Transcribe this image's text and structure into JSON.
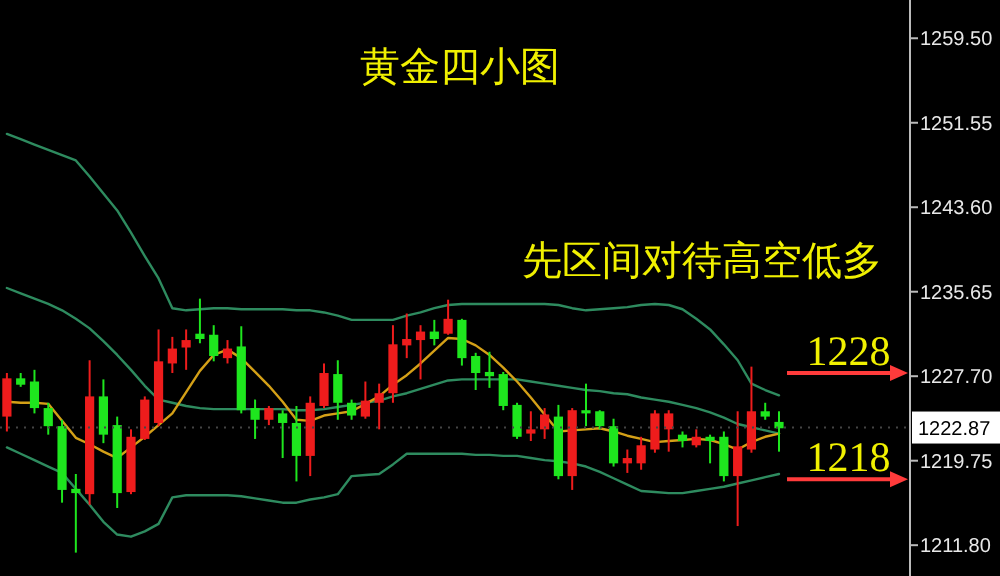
{
  "chart_data": {
    "type": "candlestick",
    "title": "黄金四小图",
    "subtitle": "先区间对待高空低多",
    "categories": [
      null,
      null,
      null,
      null,
      null,
      null,
      null,
      null,
      null,
      null,
      null,
      null,
      null,
      null,
      null,
      null,
      null,
      null,
      null,
      null,
      null,
      null,
      null,
      null,
      null,
      null,
      null,
      null,
      null,
      null,
      null,
      null,
      null,
      null,
      null,
      null,
      null,
      null,
      null,
      null,
      null,
      null,
      null,
      null,
      null,
      null,
      null,
      null,
      null,
      null,
      null,
      null,
      null,
      null,
      null,
      null,
      null,
      null,
      null,
      null,
      null,
      null,
      null,
      null,
      null,
      null
    ],
    "ohlc": [
      [
        1227.5,
        1228.0,
        1222.5,
        1223.9
      ],
      [
        1226.9,
        1228.0,
        1226.7,
        1227.5
      ],
      [
        1224.7,
        1228.3,
        1224.2,
        1227.2
      ],
      [
        1223.0,
        1225.2,
        1222.2,
        1224.7
      ],
      [
        1217.0,
        1223.6,
        1215.8,
        1223.0
      ],
      [
        1216.7,
        1218.5,
        1211.1,
        1217.1
      ],
      [
        1225.8,
        1229.2,
        1215.6,
        1216.6
      ],
      [
        1222.2,
        1227.4,
        1221.4,
        1225.8
      ],
      [
        1216.7,
        1223.9,
        1215.3,
        1223.1
      ],
      [
        1222.0,
        1222.7,
        1216.6,
        1216.8
      ],
      [
        1225.5,
        1225.8,
        1221.7,
        1221.8
      ],
      [
        1229.1,
        1232.1,
        1223.0,
        1223.3
      ],
      [
        1230.3,
        1231.4,
        1228.0,
        1228.9
      ],
      [
        1231.1,
        1232.1,
        1228.3,
        1230.4
      ],
      [
        1231.2,
        1235.0,
        1230.8,
        1231.7
      ],
      [
        1229.6,
        1232.5,
        1229.1,
        1231.6
      ],
      [
        1230.3,
        1231.1,
        1228.9,
        1229.4
      ],
      [
        1224.5,
        1232.4,
        1224.2,
        1230.5
      ],
      [
        1223.6,
        1225.5,
        1221.8,
        1224.7
      ],
      [
        1224.7,
        1224.9,
        1223.1,
        1223.6
      ],
      [
        1223.3,
        1224.5,
        1220.0,
        1224.2
      ],
      [
        1220.2,
        1224.9,
        1217.8,
        1223.3
      ],
      [
        1225.2,
        1225.8,
        1218.3,
        1220.2
      ],
      [
        1228.0,
        1228.9,
        1224.7,
        1224.9
      ],
      [
        1225.2,
        1229.2,
        1223.6,
        1227.9
      ],
      [
        1224.0,
        1225.5,
        1223.6,
        1225.2
      ],
      [
        1225.4,
        1227.2,
        1223.7,
        1223.9
      ],
      [
        1226.1,
        1227.0,
        1222.7,
        1225.2
      ],
      [
        1230.7,
        1232.5,
        1225.2,
        1226.1
      ],
      [
        1231.2,
        1233.6,
        1229.4,
        1230.6
      ],
      [
        1231.9,
        1232.5,
        1227.4,
        1231.1
      ],
      [
        1231.2,
        1233.0,
        1230.6,
        1231.9
      ],
      [
        1233.1,
        1234.9,
        1231.6,
        1231.7
      ],
      [
        1229.4,
        1233.1,
        1228.7,
        1233.0
      ],
      [
        1228.0,
        1229.9,
        1226.4,
        1229.6
      ],
      [
        1227.7,
        1230.0,
        1226.6,
        1228.1
      ],
      [
        1224.9,
        1228.1,
        1224.5,
        1227.9
      ],
      [
        1222.0,
        1225.2,
        1221.8,
        1225.0
      ],
      [
        1222.7,
        1224.4,
        1221.6,
        1222.3
      ],
      [
        1224.1,
        1224.7,
        1221.8,
        1222.7
      ],
      [
        1218.3,
        1225.0,
        1218.0,
        1223.9
      ],
      [
        1224.5,
        1224.7,
        1217.0,
        1218.3
      ],
      [
        1224.2,
        1227.0,
        1223.0,
        1224.5
      ],
      [
        1223.0,
        1224.5,
        1222.7,
        1224.4
      ],
      [
        1219.5,
        1223.7,
        1219.2,
        1223.0
      ],
      [
        1220.0,
        1220.8,
        1218.6,
        1219.5
      ],
      [
        1221.2,
        1222.0,
        1218.9,
        1219.5
      ],
      [
        1224.2,
        1224.5,
        1220.5,
        1220.8
      ],
      [
        1224.2,
        1224.5,
        1220.6,
        1222.7
      ],
      [
        1221.6,
        1222.5,
        1221.0,
        1222.2
      ],
      [
        1222.0,
        1222.7,
        1221.0,
        1221.2
      ],
      [
        1221.6,
        1222.2,
        1219.5,
        1222.0
      ],
      [
        1218.3,
        1222.5,
        1217.8,
        1222.0
      ],
      [
        1221.1,
        1224.4,
        1213.6,
        1218.3
      ],
      [
        1224.4,
        1228.6,
        1220.5,
        1220.8
      ],
      [
        1223.9,
        1225.2,
        1223.6,
        1224.4
      ],
      [
        1222.8,
        1224.4,
        1220.6,
        1223.4
      ],
      null,
      null,
      null,
      null,
      null,
      null,
      null,
      null,
      null
    ],
    "colors": [
      "#ee1c1c",
      "#1ee61e",
      "#1ee61e",
      "#1ee61e",
      "#1ee61e",
      "#1ee61e",
      "#ee1c1c",
      "#1ee61e",
      "#1ee61e",
      "#ee1c1c",
      "#ee1c1c",
      "#ee1c1c",
      "#ee1c1c",
      "#ee1c1c",
      "#1ee61e",
      "#1ee61e",
      "#ee1c1c",
      "#1ee61e",
      "#1ee61e",
      "#ee1c1c",
      "#1ee61e",
      "#1ee61e",
      "#ee1c1c",
      "#ee1c1c",
      "#1ee61e",
      "#1ee61e",
      "#ee1c1c",
      "#ee1c1c",
      "#ee1c1c",
      "#ee1c1c",
      "#ee1c1c",
      "#1ee61e",
      "#ee1c1c",
      "#1ee61e",
      "#1ee61e",
      "#1ee61e",
      "#1ee61e",
      "#1ee61e",
      "#ee1c1c",
      "#ee1c1c",
      "#1ee61e",
      "#ee1c1c",
      "#1ee61e",
      "#1ee61e",
      "#1ee61e",
      "#ee1c1c",
      "#ee1c1c",
      "#ee1c1c",
      "#ee1c1c",
      "#1ee61e",
      "#ee1c1c",
      "#1ee61e",
      "#1ee61e",
      "#ee1c1c",
      "#ee1c1c",
      "#1ee61e",
      "#1ee61e",
      null,
      null,
      null,
      null,
      null,
      null,
      null,
      null,
      null
    ],
    "series": [
      {
        "type": "line",
        "color": "#2e8b5f",
        "values": [
          1250.5,
          1250.0,
          1249.5,
          1249.0,
          1248.5,
          1248.0,
          1246.5,
          1244.9,
          1243.3,
          1241.2,
          1239.0,
          1236.9,
          1234.1,
          1233.9,
          1234.0,
          1234.1,
          1234.1,
          1234.0,
          1234.0,
          1234.0,
          1234.0,
          1233.9,
          1233.9,
          1233.7,
          1233.4,
          1233.0,
          1233.0,
          1233.0,
          1233.0,
          1233.4,
          1233.7,
          1234.1,
          1234.4,
          1234.5,
          1234.5,
          1234.5,
          1234.5,
          1234.5,
          1234.5,
          1234.5,
          1234.4,
          1234.1,
          1233.9,
          1234.0,
          1234.1,
          1234.2,
          1234.4,
          1234.5,
          1234.4,
          1234.0,
          1233.1,
          1232.1,
          1230.7,
          1229.2,
          1227.0,
          1226.4,
          1225.9,
          null,
          null,
          null,
          null,
          null,
          null,
          null,
          null,
          null
        ]
      },
      {
        "type": "line",
        "color": "#2e8b5f",
        "values": [
          1236.0,
          1235.5,
          1235.0,
          1234.5,
          1233.9,
          1233.1,
          1232.2,
          1231.0,
          1229.7,
          1228.3,
          1226.8,
          1225.5,
          1225.2,
          1224.9,
          1224.7,
          1224.6,
          1224.6,
          1224.6,
          1224.6,
          1224.6,
          1224.6,
          1224.5,
          1224.5,
          1224.6,
          1224.8,
          1225.0,
          1225.2,
          1225.4,
          1225.8,
          1226.1,
          1226.5,
          1226.9,
          1227.3,
          1227.4,
          1227.4,
          1227.4,
          1227.4,
          1227.4,
          1227.2,
          1227.0,
          1226.8,
          1226.6,
          1226.4,
          1226.3,
          1226.1,
          1226.0,
          1225.7,
          1225.5,
          1225.3,
          1225.0,
          1224.7,
          1224.3,
          1223.8,
          1223.2,
          1222.9,
          1222.6,
          1222.3,
          null,
          null,
          null,
          null,
          null,
          null,
          null,
          null,
          null
        ]
      },
      {
        "type": "line",
        "color": "#2e8b5f",
        "values": [
          1221.0,
          1220.4,
          1219.8,
          1219.2,
          1218.6,
          1217.1,
          1215.6,
          1214.0,
          1212.8,
          1212.6,
          1213.1,
          1213.8,
          1216.3,
          1216.5,
          1216.5,
          1216.5,
          1216.5,
          1216.4,
          1216.2,
          1216.0,
          1215.8,
          1215.8,
          1216.1,
          1216.3,
          1216.6,
          1218.3,
          1218.4,
          1218.5,
          1219.4,
          1220.4,
          1220.4,
          1220.4,
          1220.4,
          1220.4,
          1220.3,
          1220.3,
          1220.2,
          1220.2,
          1220.0,
          1219.8,
          1219.7,
          1219.5,
          1219.2,
          1218.7,
          1218.1,
          1217.5,
          1216.9,
          1216.8,
          1216.7,
          1216.7,
          1216.9,
          1217.1,
          1217.3,
          1217.6,
          1217.9,
          1218.2,
          1218.5,
          null,
          null,
          null,
          null,
          null,
          null,
          null,
          null,
          null
        ]
      },
      {
        "type": "line",
        "color": "#d4a017",
        "values": [
          1225.3,
          1225.2,
          1225.2,
          1225.1,
          1223.5,
          1221.9,
          1221.3,
          1220.6,
          1220.0,
          1221.0,
          1222.0,
          1223.1,
          1224.2,
          1226.2,
          1228.2,
          1229.7,
          1230.2,
          1229.4,
          1228.1,
          1226.8,
          1225.3,
          1223.6,
          1223.5,
          1224.0,
          1224.2,
          1224.4,
          1225.1,
          1225.8,
          1226.9,
          1227.8,
          1228.9,
          1230.1,
          1231.3,
          1231.2,
          1230.6,
          1229.7,
          1228.5,
          1227.2,
          1225.7,
          1224.1,
          1222.5,
          1222.6,
          1222.7,
          1222.8,
          1222.5,
          1222.1,
          1221.8,
          1221.5,
          1221.6,
          1221.7,
          1221.8,
          1221.7,
          1221.3,
          1220.8,
          1221.5,
          1222.0,
          1222.3,
          null,
          null,
          null,
          null,
          null,
          null,
          null,
          null,
          null
        ]
      }
    ],
    "ylim": [
      1208.9,
      1263.1
    ],
    "yticks": [
      {
        "value": 1211.8,
        "label": "1211.80"
      },
      {
        "value": 1219.75,
        "label": "1219.75"
      },
      {
        "value": 1227.7,
        "label": "1227.70"
      },
      {
        "value": 1235.65,
        "label": "1235.65"
      },
      {
        "value": 1243.6,
        "label": "1243.60"
      },
      {
        "value": 1251.55,
        "label": "1251.55"
      },
      {
        "value": 1259.5,
        "label": "1259.50"
      }
    ],
    "tick_labels": "y",
    "ref_lines": [
      {
        "axis": "y",
        "value": 1222.87,
        "label": "1222.87"
      },
      {
        "axis": "y",
        "value": 1228,
        "label": "1228",
        "color": "#ff3b3b"
      },
      {
        "axis": "y",
        "value": 1218,
        "label": "1218",
        "color": "#ff3b3b"
      }
    ]
  }
}
